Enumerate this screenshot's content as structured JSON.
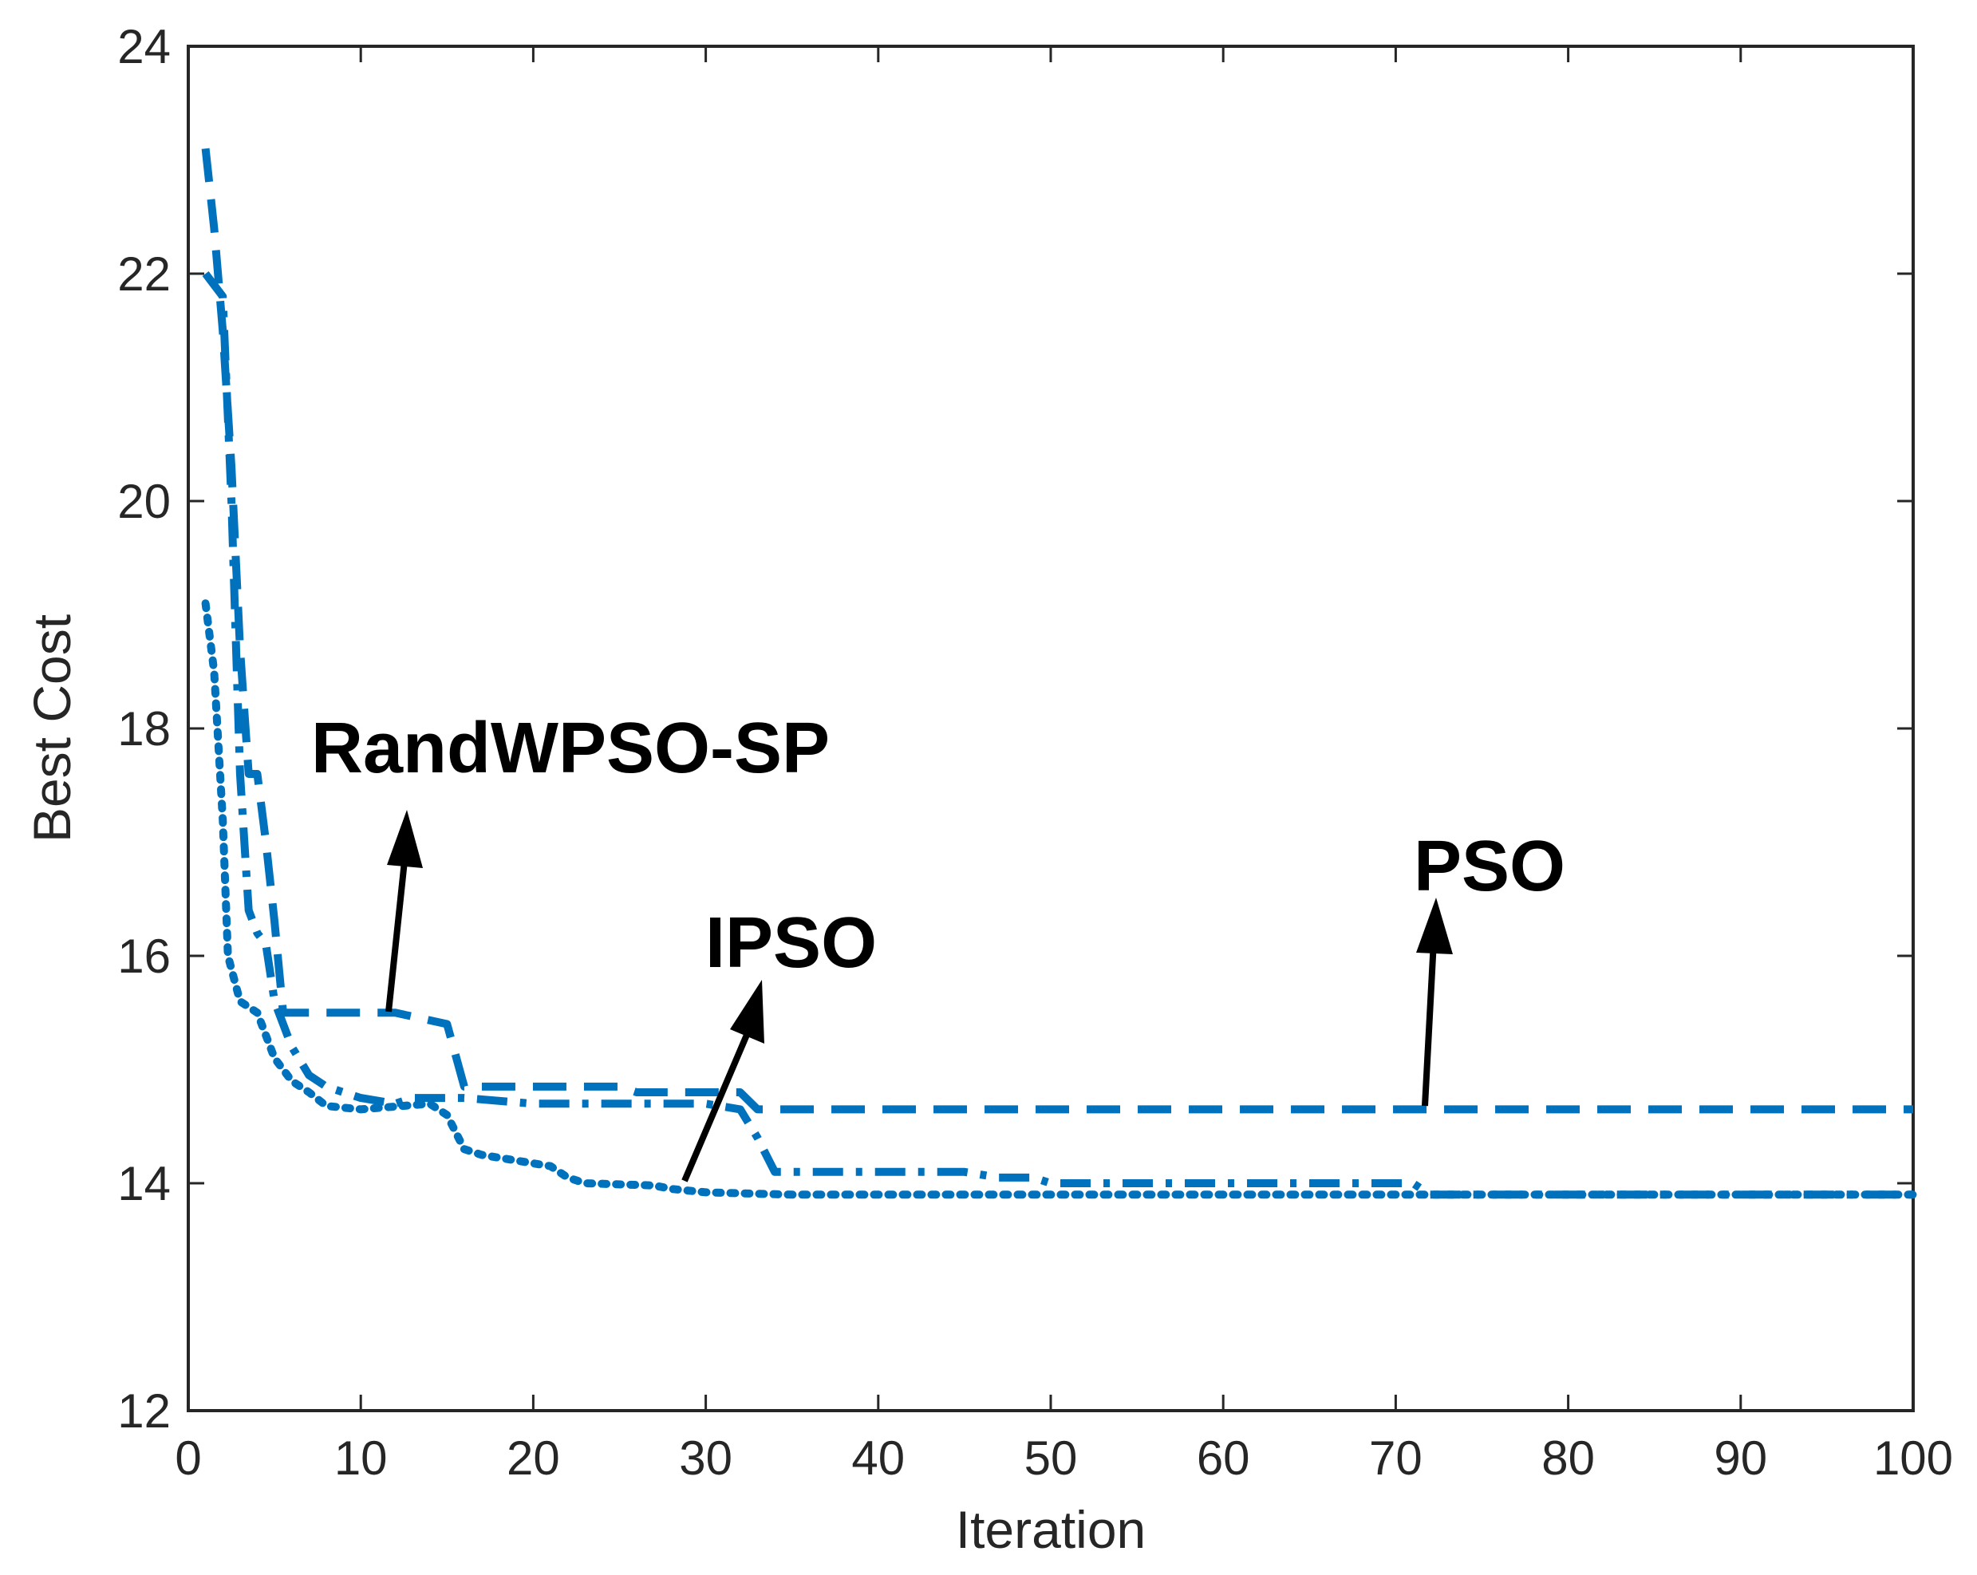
{
  "chart_data": {
    "type": "line",
    "title": "",
    "xlabel": "Iteration",
    "ylabel": "Best Cost",
    "xlim": [
      0,
      100
    ],
    "ylim": [
      12,
      24
    ],
    "xticks": [
      0,
      10,
      20,
      30,
      40,
      50,
      60,
      70,
      80,
      90,
      100
    ],
    "yticks": [
      12,
      14,
      16,
      18,
      20,
      22,
      24
    ],
    "grid": false,
    "line_color": "#0072BD",
    "series": [
      {
        "name": "PSO",
        "style": "dashed",
        "points": [
          [
            1,
            23.1
          ],
          [
            1.5,
            22.4
          ],
          [
            2,
            21.5
          ],
          [
            2.5,
            20.3
          ],
          [
            3,
            18.7
          ],
          [
            3.5,
            17.6
          ],
          [
            4,
            17.6
          ],
          [
            4.5,
            17.0
          ],
          [
            5,
            16.3
          ],
          [
            5.5,
            15.5
          ],
          [
            12,
            15.5
          ],
          [
            15,
            15.4
          ],
          [
            16,
            14.85
          ],
          [
            25,
            14.85
          ],
          [
            26,
            14.8
          ],
          [
            32,
            14.8
          ],
          [
            33,
            14.65
          ],
          [
            100,
            14.65
          ]
        ]
      },
      {
        "name": "RandWPSO-SP",
        "style": "dashdot",
        "points": [
          [
            1,
            22.0
          ],
          [
            2,
            21.8
          ],
          [
            2.5,
            20.0
          ],
          [
            3,
            17.6
          ],
          [
            3.5,
            16.4
          ],
          [
            4,
            16.2
          ],
          [
            4.5,
            16.1
          ],
          [
            5,
            15.6
          ],
          [
            6,
            15.2
          ],
          [
            7,
            14.95
          ],
          [
            8,
            14.85
          ],
          [
            9,
            14.8
          ],
          [
            10,
            14.75
          ],
          [
            12,
            14.7
          ],
          [
            13,
            14.75
          ],
          [
            15,
            14.75
          ],
          [
            16,
            14.75
          ],
          [
            20,
            14.7
          ],
          [
            30,
            14.7
          ],
          [
            32,
            14.65
          ],
          [
            33,
            14.4
          ],
          [
            34,
            14.1
          ],
          [
            45,
            14.1
          ],
          [
            47,
            14.05
          ],
          [
            49,
            14.05
          ],
          [
            50,
            14.0
          ],
          [
            60,
            14.0
          ],
          [
            71,
            14.0
          ],
          [
            72,
            13.9
          ],
          [
            100,
            13.9
          ]
        ]
      },
      {
        "name": "IPSO",
        "style": "dotted",
        "points": [
          [
            1,
            19.1
          ],
          [
            1.5,
            18.5
          ],
          [
            2,
            17.2
          ],
          [
            2.3,
            16.0
          ],
          [
            3,
            15.6
          ],
          [
            4,
            15.5
          ],
          [
            5,
            15.1
          ],
          [
            6,
            14.9
          ],
          [
            7,
            14.8
          ],
          [
            8,
            14.68
          ],
          [
            10,
            14.65
          ],
          [
            14,
            14.7
          ],
          [
            15,
            14.6
          ],
          [
            16,
            14.3
          ],
          [
            17,
            14.25
          ],
          [
            19,
            14.2
          ],
          [
            21,
            14.15
          ],
          [
            22,
            14.05
          ],
          [
            23,
            14.0
          ],
          [
            27,
            13.98
          ],
          [
            28,
            13.95
          ],
          [
            30,
            13.92
          ],
          [
            35,
            13.9
          ],
          [
            100,
            13.9
          ]
        ]
      }
    ],
    "annotations": [
      {
        "text": "RandWPSO-SP",
        "target_series": "RandWPSO-SP"
      },
      {
        "text": "IPSO",
        "target_series": "IPSO"
      },
      {
        "text": "PSO",
        "target_series": "PSO"
      }
    ]
  }
}
